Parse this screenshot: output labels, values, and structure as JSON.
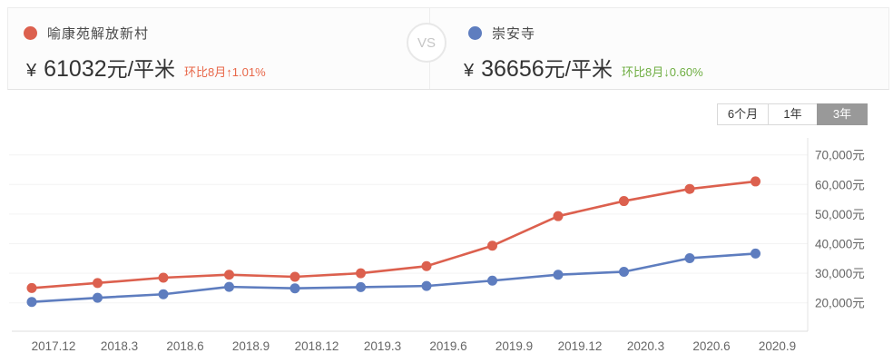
{
  "header": {
    "left": {
      "name": "喻康苑解放新村",
      "currency": "¥",
      "price": "61032",
      "unit": "元/平米",
      "change_label": "环比8月",
      "change_arrow": "↑",
      "change_value": "1.01%",
      "dot_color": "#dc604e",
      "change_color": "#e8684a"
    },
    "vs_label": "VS",
    "right": {
      "name": "崇安寺",
      "currency": "¥",
      "price": "36656",
      "unit": "元/平米",
      "change_label": "环比8月",
      "change_arrow": "↓",
      "change_value": "0.60%",
      "dot_color": "#5e7dbf",
      "change_color": "#6fae43"
    }
  },
  "tabs": [
    {
      "label": "6个月",
      "selected": false
    },
    {
      "label": "1年",
      "selected": false
    },
    {
      "label": "3年",
      "selected": true
    }
  ],
  "chart_data": {
    "type": "line",
    "categories": [
      "2017.12",
      "2018.3",
      "2018.6",
      "2018.9",
      "2018.12",
      "2019.3",
      "2019.6",
      "2019.9",
      "2019.12",
      "2020.3",
      "2020.6",
      "2020.9"
    ],
    "series": [
      {
        "name": "喻康苑解放新村",
        "color": "#dc604e",
        "values": [
          25000,
          26700,
          28500,
          29500,
          28800,
          30000,
          32400,
          39300,
          49300,
          54400,
          58500,
          61032
        ]
      },
      {
        "name": "崇安寺",
        "color": "#5e7dbf",
        "values": [
          20300,
          21700,
          22900,
          25400,
          24900,
          25300,
          25700,
          27500,
          29500,
          30500,
          35100,
          36656
        ]
      }
    ],
    "y_ticks": [
      70000,
      60000,
      50000,
      40000,
      30000,
      20000
    ],
    "y_tick_labels": [
      "70,000元",
      "60,000元",
      "50,000元",
      "40,000元",
      "30,000元",
      "20,000元"
    ],
    "ylim": [
      10000,
      75000
    ],
    "grid": true,
    "legend_position": "none",
    "colors": {
      "gridline": "#f3f3f3",
      "axis": "#dcdcdc",
      "tick_text": "#666"
    }
  }
}
